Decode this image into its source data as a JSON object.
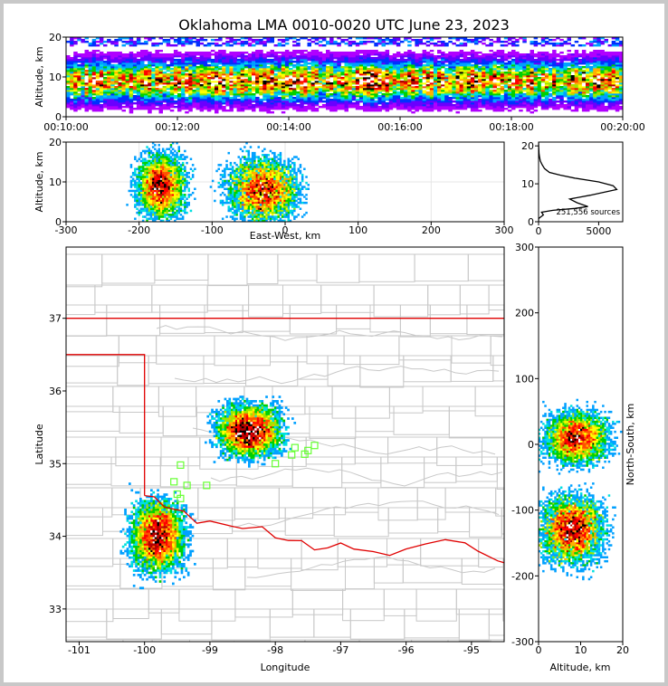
{
  "figure": {
    "title": "Oklahoma LMA 0010-0020 UTC June 23, 2023",
    "source_count_label": "251,556 sources"
  },
  "chart_data": [
    {
      "panel": "time-height",
      "type": "heatmap",
      "ylabel": "Altitude, km",
      "xlabel": "",
      "xlim": [
        "00:10:00",
        "00:20:00"
      ],
      "ylim": [
        0,
        20
      ],
      "x_ticks": [
        "00:10:00",
        "00:12:00",
        "00:14:00",
        "00:16:00",
        "00:18:00",
        "00:20:00"
      ],
      "y_ticks": [
        "0",
        "10",
        "20"
      ],
      "description_values": {
        "peak_density_altitude_km": 9,
        "source_altitude_range_km": [
          0,
          20
        ]
      }
    },
    {
      "panel": "east-west-altitude",
      "type": "heatmap",
      "xlabel": "East-West, km",
      "ylabel": "Altitude, km",
      "xlim": [
        -300,
        300
      ],
      "ylim": [
        0,
        20
      ],
      "x_ticks": [
        "-300",
        "-200",
        "-100",
        "0",
        "100",
        "200",
        "300"
      ],
      "y_ticks": [
        "0",
        "10",
        "20"
      ],
      "clusters": [
        {
          "x_center_km": -170,
          "x_range_km": [
            -205,
            -130
          ],
          "z_peak_km": 9,
          "z_top_km": 20
        },
        {
          "x_center_km": -30,
          "x_range_km": [
            -75,
            35
          ],
          "z_peak_km": 8,
          "z_top_km": 20
        }
      ]
    },
    {
      "panel": "altitude-histogram",
      "type": "line",
      "xlabel": "",
      "ylabel": "",
      "xlim": [
        0,
        7000
      ],
      "ylim": [
        0,
        21
      ],
      "x_ticks": [
        "0",
        "5000"
      ],
      "y_ticks": [
        "0",
        "10",
        "20"
      ],
      "x": [
        0,
        0,
        0,
        150,
        400,
        250,
        1200,
        3000,
        4100,
        3200,
        2600,
        4300,
        6500,
        6200,
        5000,
        3000,
        1800,
        900,
        500,
        300,
        150,
        80,
        40,
        20,
        10,
        0
      ],
      "y": [
        0,
        0.5,
        0.8,
        1.2,
        1.8,
        2.5,
        3,
        3.5,
        4,
        5,
        6,
        7,
        8.5,
        9.5,
        10.5,
        11.5,
        12.3,
        13,
        14,
        15,
        16,
        17,
        18,
        19,
        20,
        21
      ]
    },
    {
      "panel": "plan-view",
      "type": "scatter",
      "xlabel": "Longitude",
      "ylabel": "Latitude",
      "xlim": [
        -101.2,
        -94.5
      ],
      "ylim": [
        32.55,
        37.98
      ],
      "x_ticks": [
        "-101",
        "-100",
        "-99",
        "-98",
        "-97",
        "-96",
        "-95"
      ],
      "y_ticks": [
        "33",
        "34",
        "35",
        "36",
        "37"
      ],
      "clusters": [
        {
          "lon": -98.4,
          "lat": 35.45,
          "spread_lon": 0.35,
          "spread_lat": 0.25
        },
        {
          "lon": -99.8,
          "lat": 34.0,
          "spread_lon": 0.3,
          "spread_lat": 0.35
        }
      ],
      "stations": [
        {
          "lon": -99.45,
          "lat": 34.98
        },
        {
          "lon": -99.55,
          "lat": 34.75
        },
        {
          "lon": -99.35,
          "lat": 34.7
        },
        {
          "lon": -99.05,
          "lat": 34.7
        },
        {
          "lon": -99.5,
          "lat": 34.58
        },
        {
          "lon": -99.45,
          "lat": 34.52
        },
        {
          "lon": -98.0,
          "lat": 35.0
        },
        {
          "lon": -97.75,
          "lat": 35.12
        },
        {
          "lon": -97.55,
          "lat": 35.13
        },
        {
          "lon": -97.5,
          "lat": 35.18
        },
        {
          "lon": -97.4,
          "lat": 35.25
        },
        {
          "lon": -97.7,
          "lat": 35.22
        }
      ]
    },
    {
      "panel": "north-south-altitude",
      "type": "heatmap",
      "xlabel": "Altitude, km",
      "ylabel": "North-South, km",
      "xlim": [
        0,
        20
      ],
      "ylim": [
        -300,
        300
      ],
      "x_ticks": [
        "0",
        "10",
        "20"
      ],
      "y_ticks": [
        "-300",
        "-200",
        "-100",
        "0",
        "100",
        "200",
        "300"
      ],
      "clusters": [
        {
          "ns_center_km": 10,
          "ns_range_km": [
            -25,
            65
          ],
          "z_peak_km": 9
        },
        {
          "ns_center_km": -130,
          "ns_range_km": [
            -210,
            -90
          ],
          "z_peak_km": 8
        }
      ]
    }
  ]
}
